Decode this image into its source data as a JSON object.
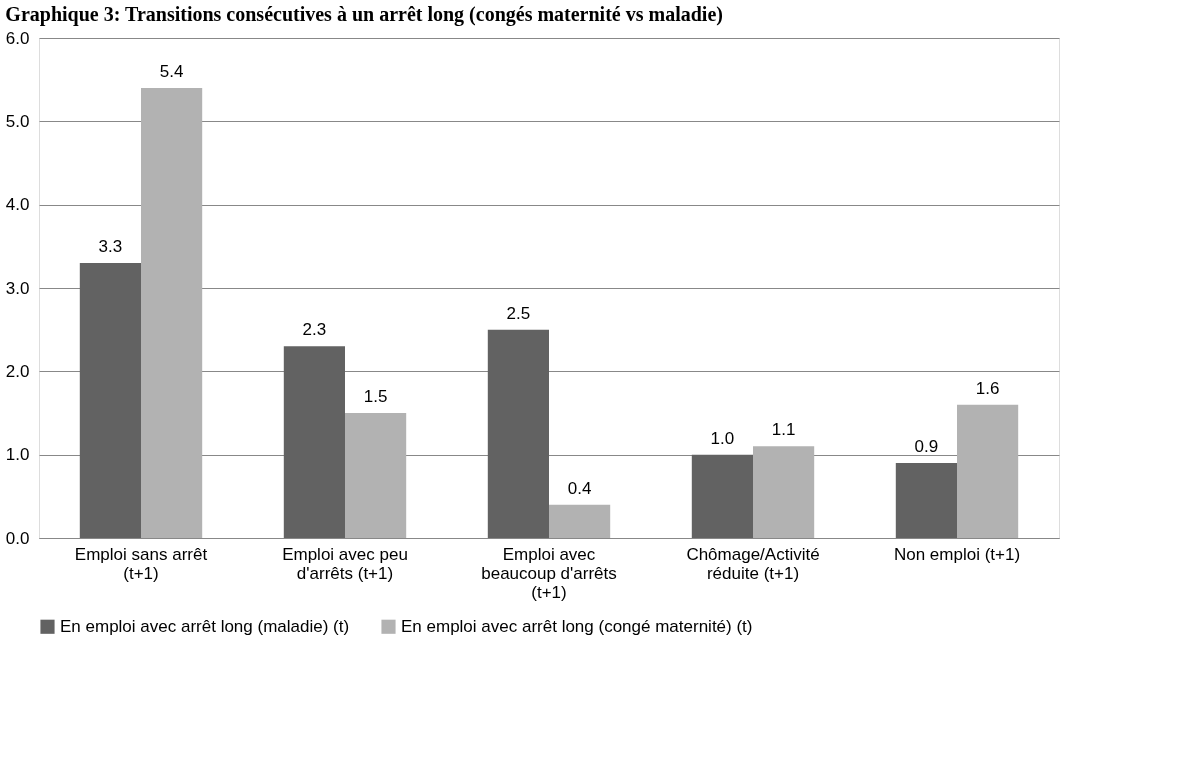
{
  "chart_data": {
    "type": "bar",
    "title": "Graphique 3: Transitions consécutives à un arrêt long (congés maternité vs maladie)",
    "categories": [
      "Emploi sans arrêt\n(t+1)",
      "Emploi avec peu\nd'arrêts (t+1)",
      "Emploi avec\nbeaucoup d'arrêts\n(t+1)",
      "Chômage/Activité\nréduite (t+1)",
      "Non emploi (t+1)"
    ],
    "series": [
      {
        "name": "En emploi avec arrêt long (maladie) (t)",
        "color": "#626262",
        "values": [
          3.3,
          2.3,
          2.5,
          1.0,
          0.9
        ],
        "value_labels": [
          "3.3",
          "2.3",
          "2.5",
          "1.0",
          "0.9"
        ]
      },
      {
        "name": "En emploi avec arrêt long (congé maternité) (t)",
        "color": "#b2b2b2",
        "values": [
          5.4,
          1.5,
          0.4,
          1.1,
          1.6
        ],
        "value_labels": [
          "5.4",
          "1.5",
          "0.4",
          "1.1",
          "1.6"
        ]
      }
    ],
    "ylim": [
      0,
      6
    ],
    "yticks": [
      {
        "value": 0,
        "label": "0.0"
      },
      {
        "value": 1,
        "label": "1.0"
      },
      {
        "value": 2,
        "label": "2.0"
      },
      {
        "value": 3,
        "label": "3.0"
      },
      {
        "value": 4,
        "label": "4.0"
      },
      {
        "value": 5,
        "label": "5.0"
      },
      {
        "value": 6,
        "label": "6.0"
      }
    ],
    "grid": "y",
    "legend": "bottom"
  }
}
